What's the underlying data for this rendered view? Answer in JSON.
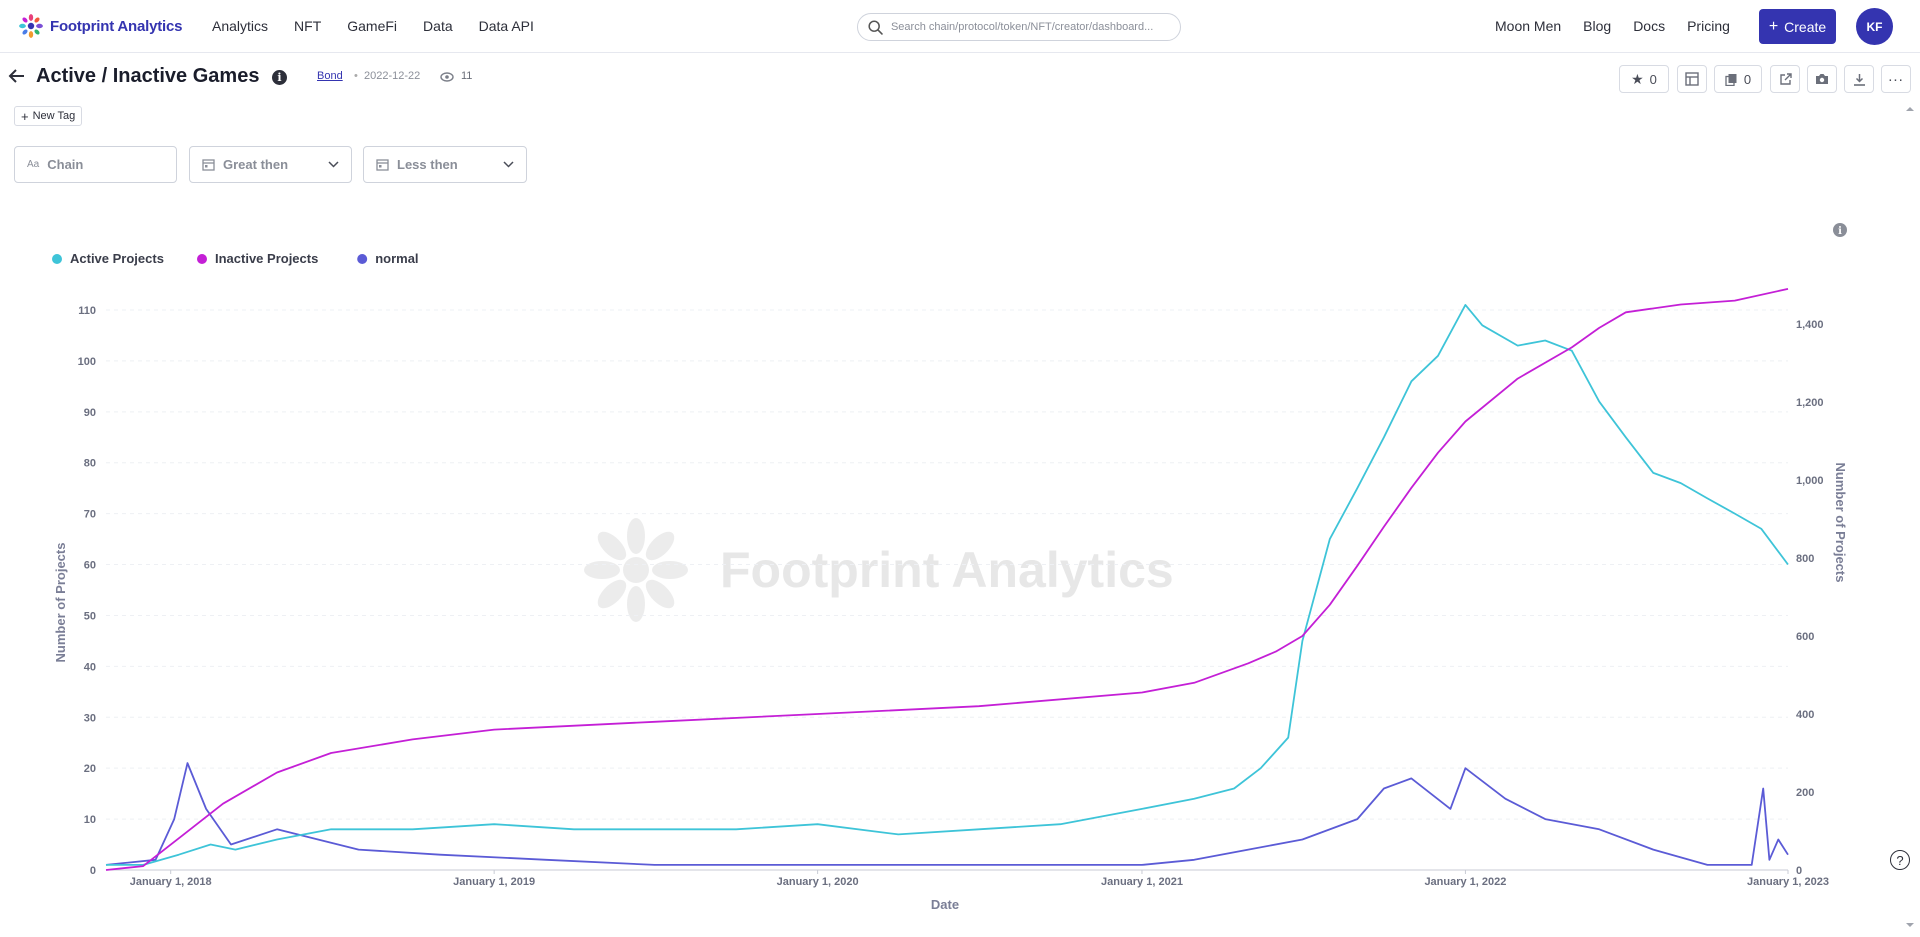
{
  "brand": {
    "name": "Footprint Analytics",
    "accent": "#3434b0"
  },
  "nav": {
    "items": [
      "Analytics",
      "NFT",
      "GameFi",
      "Data",
      "Data API"
    ]
  },
  "search": {
    "placeholder": "Search chain/protocol/token/NFT/creator/dashboard..."
  },
  "rightnav": {
    "items": [
      "Moon Men",
      "Blog",
      "Docs",
      "Pricing"
    ]
  },
  "create_label": "Create",
  "avatar_initials": "KF",
  "dashboard": {
    "title": "Active / Inactive Games",
    "author": "Bond",
    "date": "2022-12-22",
    "views": "11",
    "favorites": "0",
    "copies": "0",
    "new_tag_label": "New Tag"
  },
  "filters": [
    {
      "label": "Chain",
      "icon": "text-icon"
    },
    {
      "label": "Great then",
      "icon": "calendar-icon"
    },
    {
      "label": "Less then",
      "icon": "calendar-icon"
    }
  ],
  "chart_data": {
    "type": "line",
    "xlabel": "Date",
    "ylabel": "Number of Projects",
    "ylabel_right": "Number of Projects",
    "watermark": "Footprint Analytics",
    "legend_position": "top-left",
    "grid": true,
    "x_ticks": [
      "January 1, 2018",
      "January 1, 2019",
      "January 1, 2020",
      "January 1, 2021",
      "January 1, 2022",
      "January 1, 2023"
    ],
    "ylim_left": [
      0,
      110
    ],
    "yticks_left": [
      0,
      10,
      20,
      30,
      40,
      50,
      60,
      70,
      80,
      90,
      100,
      110
    ],
    "ylim_right": [
      0,
      1400
    ],
    "yticks_right": [
      "0",
      "200",
      "400",
      "600",
      "800",
      "1,000",
      "1,200",
      "1,400"
    ],
    "series": [
      {
        "name": "Active Projects",
        "axis": "left",
        "color": "#3ec4d8",
        "x": [
          "2017-10-20",
          "2017-12-01",
          "2018-01-10",
          "2018-02-15",
          "2018-03-15",
          "2018-05-01",
          "2018-07-01",
          "2018-10-01",
          "2019-01-01",
          "2019-04-01",
          "2019-07-01",
          "2019-10-01",
          "2020-01-01",
          "2020-04-01",
          "2020-07-01",
          "2020-10-01",
          "2021-01-01",
          "2021-03-01",
          "2021-04-15",
          "2021-05-15",
          "2021-06-15",
          "2021-07-01",
          "2021-08-01",
          "2021-09-01",
          "2021-10-01",
          "2021-11-01",
          "2021-12-01",
          "2022-01-01",
          "2022-01-20",
          "2022-03-01",
          "2022-04-01",
          "2022-05-01",
          "2022-06-01",
          "2022-07-01",
          "2022-08-01",
          "2022-09-01",
          "2022-10-01",
          "2022-11-01",
          "2022-12-01",
          "2022-12-31"
        ],
        "values": [
          1,
          1,
          3,
          5,
          4,
          6,
          8,
          8,
          9,
          8,
          8,
          8,
          9,
          7,
          8,
          9,
          12,
          14,
          16,
          20,
          26,
          45,
          65,
          75,
          85,
          96,
          101,
          111,
          107,
          103,
          104,
          102,
          92,
          85,
          78,
          76,
          73,
          70,
          67,
          60
        ]
      },
      {
        "name": "Inactive Projects",
        "axis": "right",
        "color": "#c41fd6",
        "x": [
          "2017-10-20",
          "2017-12-01",
          "2018-01-15",
          "2018-03-01",
          "2018-05-01",
          "2018-07-01",
          "2018-10-01",
          "2019-01-01",
          "2019-07-01",
          "2020-01-01",
          "2020-07-01",
          "2021-01-01",
          "2021-03-01",
          "2021-05-01",
          "2021-06-01",
          "2021-07-01",
          "2021-08-01",
          "2021-09-01",
          "2021-10-01",
          "2021-11-01",
          "2021-12-01",
          "2022-01-01",
          "2022-03-01",
          "2022-05-01",
          "2022-06-01",
          "2022-07-01",
          "2022-09-01",
          "2022-11-01",
          "2022-12-31"
        ],
        "values": [
          0,
          10,
          90,
          170,
          250,
          300,
          335,
          360,
          380,
          400,
          420,
          455,
          480,
          530,
          560,
          600,
          680,
          780,
          880,
          980,
          1070,
          1150,
          1260,
          1340,
          1390,
          1430,
          1450,
          1460,
          1490
        ]
      },
      {
        "name": "normal",
        "axis": "left",
        "color": "#5b5bd6",
        "x": [
          "2017-10-20",
          "2017-12-15",
          "2018-01-05",
          "2018-01-20",
          "2018-02-10",
          "2018-03-10",
          "2018-05-01",
          "2018-08-01",
          "2018-11-01",
          "2019-03-01",
          "2019-07-01",
          "2020-01-01",
          "2020-07-01",
          "2021-01-01",
          "2021-03-01",
          "2021-05-01",
          "2021-07-01",
          "2021-09-01",
          "2021-10-01",
          "2021-11-01",
          "2021-12-15",
          "2022-01-01",
          "2022-02-15",
          "2022-04-01",
          "2022-06-01",
          "2022-08-01",
          "2022-10-01",
          "2022-11-20",
          "2022-12-03",
          "2022-12-10",
          "2022-12-20",
          "2022-12-31"
        ],
        "values": [
          1,
          2,
          10,
          21,
          12,
          5,
          8,
          4,
          3,
          2,
          1,
          1,
          1,
          1,
          2,
          4,
          6,
          10,
          16,
          18,
          12,
          20,
          14,
          10,
          8,
          4,
          1,
          1,
          16,
          2,
          6,
          3
        ]
      }
    ]
  }
}
